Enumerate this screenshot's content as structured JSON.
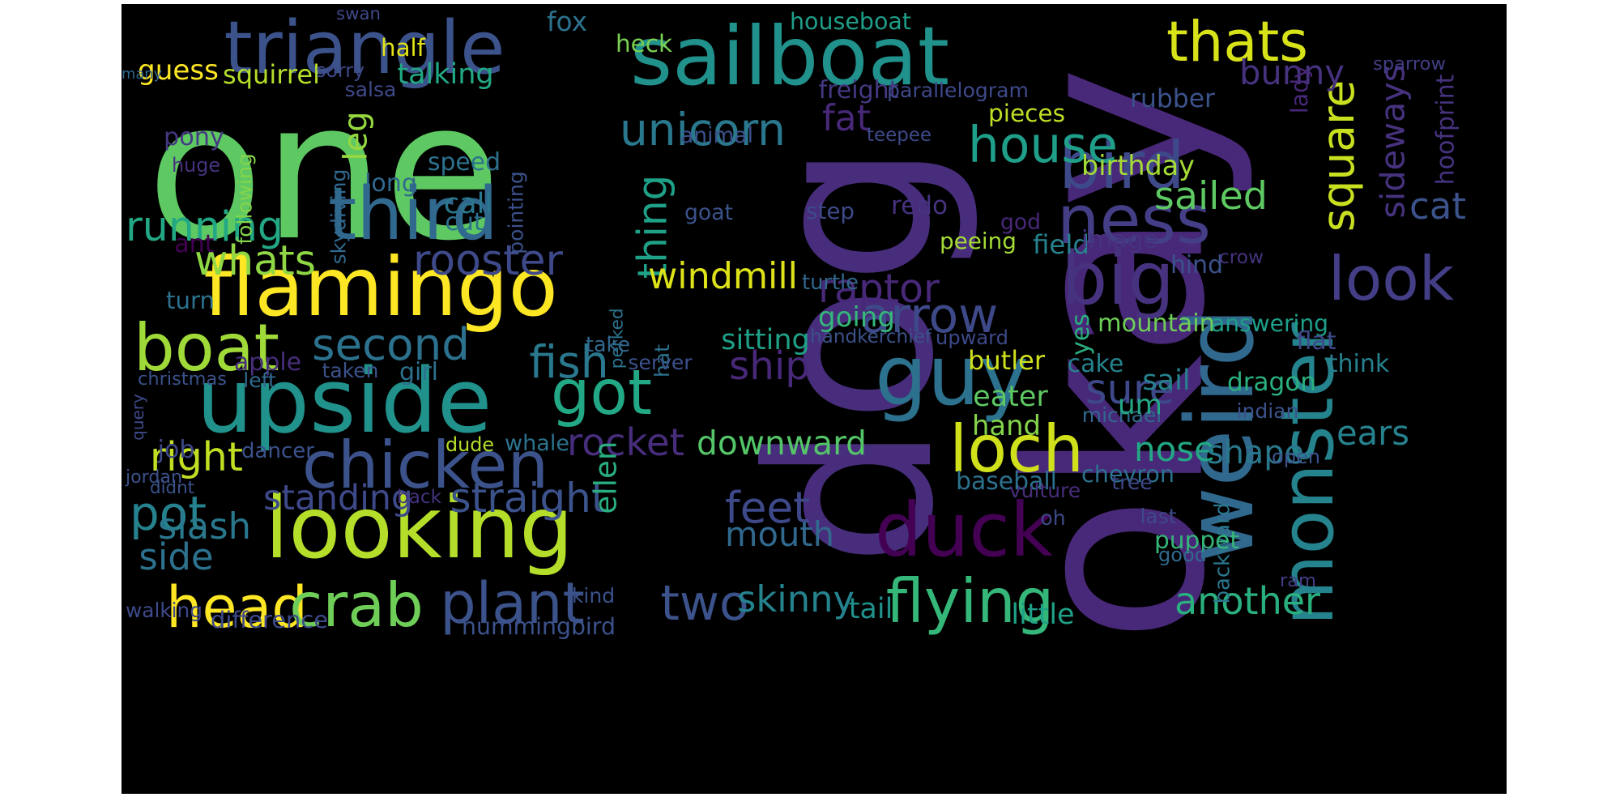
{
  "words": [
    {
      "text": "dog",
      "color": "#472d7b"
    },
    {
      "text": "okay",
      "color": "#482878"
    },
    {
      "text": "one",
      "color": "#5ec962"
    },
    {
      "text": "sailboat",
      "color": "#21918c"
    },
    {
      "text": "triangle",
      "color": "#3b528b"
    },
    {
      "text": "upside",
      "color": "#21918c"
    },
    {
      "text": "flamingo",
      "color": "#fde725"
    },
    {
      "text": "looking",
      "color": "#b5de2b"
    },
    {
      "text": "weird",
      "color": "#31688e"
    },
    {
      "text": "guy",
      "color": "#2c728e"
    },
    {
      "text": "duck",
      "color": "#440154"
    },
    {
      "text": "thats",
      "color": "#d8e219"
    },
    {
      "text": "square",
      "color": "#c8e020"
    },
    {
      "text": "chicken",
      "color": "#3b528b"
    },
    {
      "text": "monster",
      "color": "#25838e"
    },
    {
      "text": "bird",
      "color": "#3e4989"
    },
    {
      "text": "big",
      "color": "#46327e"
    },
    {
      "text": "third",
      "color": "#31688e"
    },
    {
      "text": "ness",
      "color": "#433e85"
    },
    {
      "text": "house",
      "color": "#1f9e89"
    },
    {
      "text": "unicorn",
      "color": "#2a788e"
    },
    {
      "text": "flying",
      "color": "#35b779"
    },
    {
      "text": "loch",
      "color": "#d0e11c"
    },
    {
      "text": "boat",
      "color": "#a0da39"
    },
    {
      "text": "head",
      "color": "#fde725"
    },
    {
      "text": "crab",
      "color": "#6ece58"
    },
    {
      "text": "plant",
      "color": "#3b528b"
    },
    {
      "text": "got",
      "color": "#22a884"
    },
    {
      "text": "look",
      "color": "#433e85"
    },
    {
      "text": "thing",
      "color": "#1fa187"
    },
    {
      "text": "running",
      "color": "#22a884"
    },
    {
      "text": "pot",
      "color": "#26828e"
    },
    {
      "text": "second",
      "color": "#2c728e"
    },
    {
      "text": "arrow",
      "color": "#3e4989"
    },
    {
      "text": "whats",
      "color": "#8fd744"
    },
    {
      "text": "rooster",
      "color": "#3e4989"
    },
    {
      "text": "windmill",
      "color": "#dde318"
    },
    {
      "text": "raptor",
      "color": "#482878"
    },
    {
      "text": "leg",
      "color": "#95d840"
    },
    {
      "text": "fish",
      "color": "#2a788e"
    },
    {
      "text": "ship",
      "color": "#482878"
    },
    {
      "text": "rocket",
      "color": "#472d7b"
    },
    {
      "text": "downward",
      "color": "#54c568"
    },
    {
      "text": "two",
      "color": "#3b528b"
    },
    {
      "text": "another",
      "color": "#2ab07f"
    },
    {
      "text": "feet",
      "color": "#3e4989"
    },
    {
      "text": "mouth",
      "color": "#31688e"
    },
    {
      "text": "sure",
      "color": "#3e4989"
    },
    {
      "text": "nose",
      "color": "#22a884"
    },
    {
      "text": "shape",
      "color": "#2a788e"
    },
    {
      "text": "sailed",
      "color": "#5ec962"
    },
    {
      "text": "sideways",
      "color": "#46327e"
    },
    {
      "text": "bunny",
      "color": "#46327e"
    },
    {
      "text": "ears",
      "color": "#26828e"
    },
    {
      "text": "cat",
      "color": "#3b528b"
    },
    {
      "text": "right",
      "color": "#c2df23"
    },
    {
      "text": "standing",
      "color": "#3e4989"
    },
    {
      "text": "straight",
      "color": "#3b528b"
    },
    {
      "text": "slash",
      "color": "#2a788e"
    },
    {
      "text": "side",
      "color": "#2c728e"
    },
    {
      "text": "skinny",
      "color": "#25838e"
    },
    {
      "text": "hummingbird",
      "color": "#3b528b"
    },
    {
      "text": "ellen",
      "color": "#29af7f"
    },
    {
      "text": "fat",
      "color": "#482878"
    },
    {
      "text": "fox",
      "color": "#2c728e"
    },
    {
      "text": "guess",
      "color": "#fde725"
    },
    {
      "text": "squirrel",
      "color": "#b5de2b"
    },
    {
      "text": "talking",
      "color": "#22a884"
    },
    {
      "text": "heck",
      "color": "#7ad151"
    },
    {
      "text": "houseboat",
      "color": "#1f9e89"
    },
    {
      "text": "sorry",
      "color": "#3e4989"
    },
    {
      "text": "many",
      "color": "#31688e"
    },
    {
      "text": "salsa",
      "color": "#3e4989"
    },
    {
      "text": "pony",
      "color": "#443983"
    },
    {
      "text": "following",
      "color": "#84d44b"
    },
    {
      "text": "skydiving",
      "color": "#31688e"
    },
    {
      "text": "long",
      "color": "#31688e"
    },
    {
      "text": "huge",
      "color": "#46327e"
    },
    {
      "text": "speed",
      "color": "#2c728e"
    },
    {
      "text": "call",
      "color": "#2a788e"
    },
    {
      "text": "cut",
      "color": "#2c728e"
    },
    {
      "text": "animal",
      "color": "#3b528b"
    },
    {
      "text": "teepee",
      "color": "#3e4989"
    },
    {
      "text": "pieces",
      "color": "#bddf26"
    },
    {
      "text": "freight",
      "color": "#443983"
    },
    {
      "text": "parallelogram",
      "color": "#3e4989"
    },
    {
      "text": "birthday",
      "color": "#a5db36"
    },
    {
      "text": "hoofprint",
      "color": "#46327e"
    },
    {
      "text": "rubber",
      "color": "#3b528b"
    },
    {
      "text": "lady",
      "color": "#482878"
    },
    {
      "text": "sparrow",
      "color": "#433e85"
    },
    {
      "text": "swan",
      "color": "#3e4989"
    },
    {
      "text": "half",
      "color": "#e2e418"
    },
    {
      "text": "ant",
      "color": "#440154"
    },
    {
      "text": "goat",
      "color": "#3b528b"
    },
    {
      "text": "pointing",
      "color": "#3b528b"
    },
    {
      "text": "step",
      "color": "#3e4989"
    },
    {
      "text": "redo",
      "color": "#46327e"
    },
    {
      "text": "god",
      "color": "#482878"
    },
    {
      "text": "peeing",
      "color": "#a5db36"
    },
    {
      "text": "field",
      "color": "#26828e"
    },
    {
      "text": "image",
      "color": "#46327e"
    },
    {
      "text": "hind",
      "color": "#3b528b"
    },
    {
      "text": "crow",
      "color": "#46327e"
    },
    {
      "text": "turn",
      "color": "#2c728e"
    },
    {
      "text": "perked",
      "color": "#2c728e"
    },
    {
      "text": "turtle",
      "color": "#31688e"
    },
    {
      "text": "take",
      "color": "#31688e"
    },
    {
      "text": "going",
      "color": "#35b779"
    },
    {
      "text": "handkerchief",
      "color": "#3b528b"
    },
    {
      "text": "upward",
      "color": "#3e4989"
    },
    {
      "text": "mountain",
      "color": "#6ece58"
    },
    {
      "text": "answering",
      "color": "#1f9e89"
    },
    {
      "text": "yes",
      "color": "#29af7f"
    },
    {
      "text": "flat",
      "color": "#3e4989"
    },
    {
      "text": "think",
      "color": "#26828e"
    },
    {
      "text": "sitting",
      "color": "#1fa187"
    },
    {
      "text": "hat",
      "color": "#2c728e"
    },
    {
      "text": "server",
      "color": "#3b528b"
    },
    {
      "text": "butler",
      "color": "#d0e11c"
    },
    {
      "text": "cake",
      "color": "#25838e"
    },
    {
      "text": "eater",
      "color": "#5ec962"
    },
    {
      "text": "sail",
      "color": "#26828e"
    },
    {
      "text": "dragon",
      "color": "#2ab07f"
    },
    {
      "text": "apple",
      "color": "#472d7b"
    },
    {
      "text": "taken",
      "color": "#3b528b"
    },
    {
      "text": "girl",
      "color": "#2c728e"
    },
    {
      "text": "christmas",
      "color": "#3b528b"
    },
    {
      "text": "left",
      "color": "#31688e"
    },
    {
      "text": "query",
      "color": "#3e4989"
    },
    {
      "text": "indian",
      "color": "#3b528b"
    },
    {
      "text": "michael",
      "color": "#31688e"
    },
    {
      "text": "hand",
      "color": "#84d44b"
    },
    {
      "text": "whale",
      "color": "#2c728e"
    },
    {
      "text": "dude",
      "color": "#b5de2b"
    },
    {
      "text": "um",
      "color": "#22a884"
    },
    {
      "text": "job",
      "color": "#3e4989"
    },
    {
      "text": "dancer",
      "color": "#3b528b"
    },
    {
      "text": "jordan",
      "color": "#3b528b"
    },
    {
      "text": "didnt",
      "color": "#3b528b"
    },
    {
      "text": "baseball",
      "color": "#2c728e"
    },
    {
      "text": "chevron",
      "color": "#2c728e"
    },
    {
      "text": "vulture",
      "color": "#472d7b"
    },
    {
      "text": "tree",
      "color": "#3e4989"
    },
    {
      "text": "open",
      "color": "#3b528b"
    },
    {
      "text": "back",
      "color": "#46327e"
    },
    {
      "text": "oh",
      "color": "#3e4989"
    },
    {
      "text": "last",
      "color": "#3e4989"
    },
    {
      "text": "backward",
      "color": "#2a788e"
    },
    {
      "text": "puppet",
      "color": "#35b779"
    },
    {
      "text": "good",
      "color": "#31688e"
    },
    {
      "text": "kind",
      "color": "#3b528b"
    },
    {
      "text": "ram",
      "color": "#433e85"
    },
    {
      "text": "walking",
      "color": "#3e4989"
    },
    {
      "text": "difference",
      "color": "#3e4989"
    },
    {
      "text": "tail",
      "color": "#21918c"
    },
    {
      "text": "little",
      "color": "#1fa187"
    }
  ]
}
